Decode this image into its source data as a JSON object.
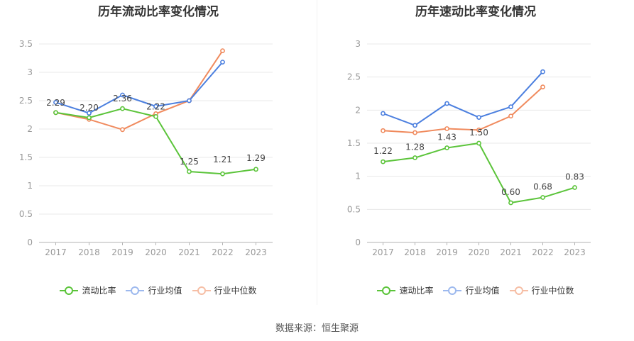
{
  "charts": [
    {
      "title": "历年流动比率变化情况",
      "legend": [
        "流动比率",
        "行业均值",
        "行业中位数"
      ],
      "tick_labels": [
        "0",
        "0.5",
        "1",
        "1.5",
        "2",
        "2.5",
        "3",
        "3.5"
      ],
      "data_labels": [
        "2.29",
        "2.20",
        "2.36",
        "2.22",
        "1.25",
        "1.21",
        "1.29"
      ]
    },
    {
      "title": "历年速动比率变化情况",
      "legend": [
        "速动比率",
        "行业均值",
        "行业中位数"
      ],
      "tick_labels": [
        "0",
        "0.5",
        "1",
        "1.5",
        "2",
        "2.5",
        "3"
      ],
      "data_labels": [
        "1.22",
        "1.28",
        "1.43",
        "1.50",
        "0.60",
        "0.68",
        "0.83"
      ]
    }
  ],
  "source": "数据来源：恒生聚源",
  "colors": {
    "company": "#5bc43a",
    "industry_avg": "#4b7fdf",
    "industry_median": "#f08a5d",
    "grid": "#e8e8e8",
    "axis": "#999999"
  },
  "chart_data": [
    {
      "type": "line",
      "title": "历年流动比率变化情况",
      "categories": [
        "2017",
        "2018",
        "2019",
        "2020",
        "2021",
        "2022",
        "2023"
      ],
      "series": [
        {
          "name": "流动比率",
          "values": [
            2.29,
            2.2,
            2.36,
            2.22,
            1.25,
            1.21,
            1.29
          ]
        },
        {
          "name": "行业均值",
          "values": [
            2.47,
            2.28,
            2.6,
            2.4,
            2.5,
            3.18,
            null
          ]
        },
        {
          "name": "行业中位数",
          "values": [
            2.29,
            2.17,
            1.99,
            2.27,
            2.5,
            3.38,
            null
          ]
        }
      ],
      "ylim": [
        0,
        3.5
      ],
      "yticks": [
        0,
        0.5,
        1,
        1.5,
        2,
        2.5,
        3,
        3.5
      ],
      "legend_position": "bottom"
    },
    {
      "type": "line",
      "title": "历年速动比率变化情况",
      "categories": [
        "2017",
        "2018",
        "2019",
        "2020",
        "2021",
        "2022",
        "2023"
      ],
      "series": [
        {
          "name": "速动比率",
          "values": [
            1.22,
            1.28,
            1.43,
            1.5,
            0.6,
            0.68,
            0.83
          ]
        },
        {
          "name": "行业均值",
          "values": [
            1.95,
            1.77,
            2.1,
            1.89,
            2.05,
            2.58,
            null
          ]
        },
        {
          "name": "行业中位数",
          "values": [
            1.69,
            1.66,
            1.72,
            1.7,
            1.91,
            2.35,
            null
          ]
        }
      ],
      "ylim": [
        0,
        3
      ],
      "yticks": [
        0,
        0.5,
        1,
        1.5,
        2,
        2.5,
        3
      ],
      "legend_position": "bottom"
    }
  ]
}
